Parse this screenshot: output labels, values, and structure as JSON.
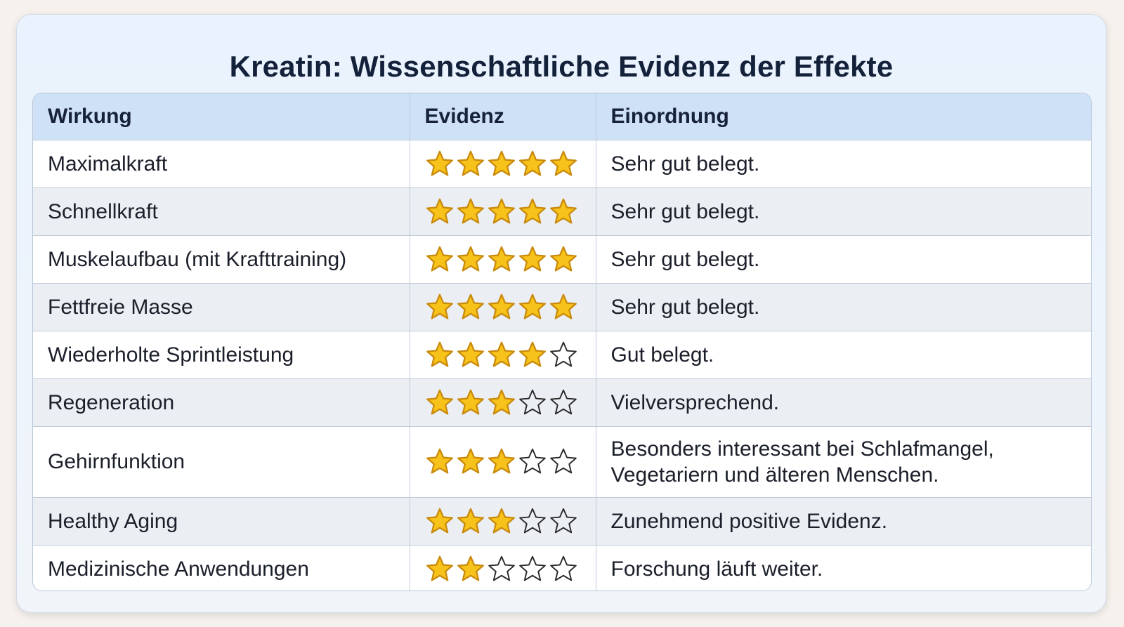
{
  "title": "Kreatin: Wissenschaftliche Evidenz der Effekte",
  "headers": [
    "Wirkung",
    "Evidenz",
    "Einordnung"
  ],
  "max_stars": 5,
  "rows": [
    {
      "effect": "Maximalkraft",
      "stars": 5,
      "note": "Sehr gut belegt."
    },
    {
      "effect": "Schnellkraft",
      "stars": 5,
      "note": "Sehr gut belegt."
    },
    {
      "effect": "Muskelaufbau (mit Krafttraining)",
      "stars": 5,
      "note": "Sehr gut belegt."
    },
    {
      "effect": "Fettfreie Masse",
      "stars": 5,
      "note": "Sehr gut belegt."
    },
    {
      "effect": "Wiederholte Sprintleistung",
      "stars": 4,
      "note": "Gut belegt."
    },
    {
      "effect": "Regeneration",
      "stars": 3,
      "note": "Vielversprechend."
    },
    {
      "effect": "Gehirnfunktion",
      "stars": 3,
      "note": "Besonders interessant bei Schlafmangel,\nVegetariern und älteren Menschen."
    },
    {
      "effect": "Healthy Aging",
      "stars": 3,
      "note": "Zunehmend positive Evidenz."
    },
    {
      "effect": "Medizinische Anwendungen",
      "stars": 2,
      "note": "Forschung läuft weiter."
    }
  ],
  "colors": {
    "star_fill": "#f7c21a",
    "star_outline": "#c98a0c",
    "star_empty_stroke": "#2a2a2a",
    "header_bg": "#cfe1f6"
  }
}
